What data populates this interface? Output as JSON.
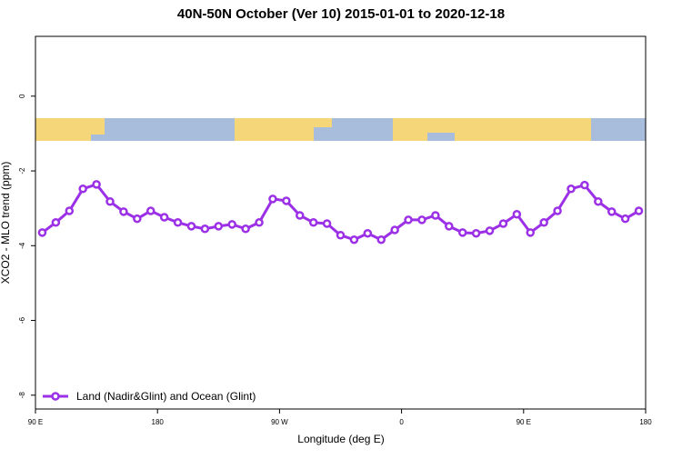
{
  "chart_data": {
    "type": "line",
    "title": "40N-50N October (Ver 10)   2015-01-01 to 2020-12-18",
    "x_label": "Longitude (deg E)",
    "y_label": "XCO2 - MLO trend (ppm)",
    "x": [
      95,
      105,
      115,
      125,
      135,
      145,
      155,
      165,
      175,
      185,
      195,
      205,
      215,
      225,
      235,
      245,
      255,
      265,
      275,
      285,
      295,
      305,
      315,
      325,
      335,
      345,
      355,
      365,
      375,
      385,
      395,
      405,
      415,
      425,
      435,
      445,
      455,
      465,
      475,
      485,
      495,
      505,
      515,
      525,
      535
    ],
    "series": [
      {
        "name": "Land (Nadir&Glint) and Ocean (Glint)",
        "color": "#9b30e6",
        "values": [
          -3.65,
          -3.38,
          -3.07,
          -2.48,
          -2.36,
          -2.82,
          -3.09,
          -3.28,
          -3.07,
          -3.24,
          -3.38,
          -3.48,
          -3.55,
          -3.48,
          -3.43,
          -3.55,
          -3.38,
          -2.75,
          -2.8,
          -3.19,
          -3.38,
          -3.41,
          -3.72,
          -3.84,
          -3.67,
          -3.84,
          -3.58,
          -3.31,
          -3.31,
          -3.19,
          -3.48,
          -3.65,
          -3.67,
          -3.6,
          -3.41,
          -3.16,
          -3.65,
          -3.38,
          -3.07,
          -2.48,
          -2.38,
          -2.82,
          -3.09,
          -3.28,
          -3.07
        ]
      }
    ],
    "xlim": [
      90,
      540
    ],
    "xticks": [
      {
        "value": 90,
        "label": "90 E"
      },
      {
        "value": 180,
        "label": "180"
      },
      {
        "value": 270,
        "label": "90 W"
      },
      {
        "value": 360,
        "label": "0"
      },
      {
        "value": 450,
        "label": "90 E"
      },
      {
        "value": 540,
        "label": "180"
      }
    ],
    "ylim": [
      -8.37,
      1.6
    ],
    "yticks": [
      0,
      -2,
      -4,
      -6,
      -8
    ],
    "grid": false,
    "legend_position": "bottom-left"
  }
}
